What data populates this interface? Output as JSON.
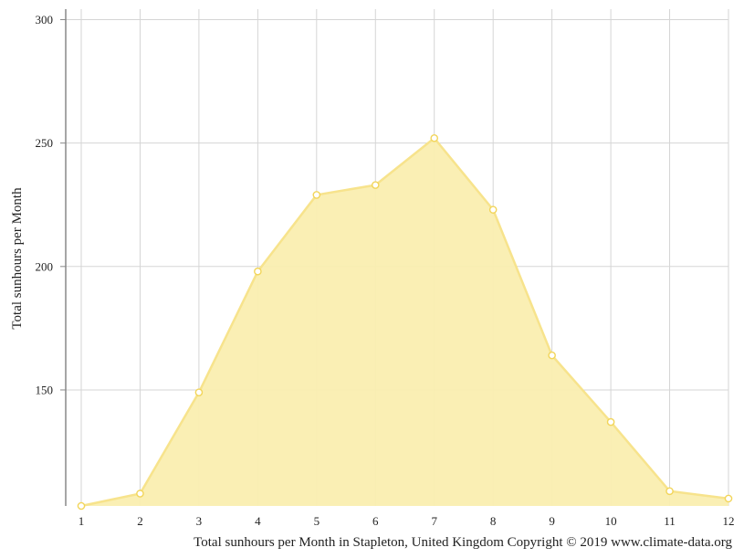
{
  "chart_data": {
    "type": "area",
    "title": "",
    "xlabel": "",
    "ylabel": "Total sunhours per Month",
    "caption": "Total sunhours per Month in Stapleton, United Kingdom Copyright © 2019 www.climate-data.org",
    "categories": [
      "1",
      "2",
      "3",
      "4",
      "5",
      "6",
      "7",
      "8",
      "9",
      "10",
      "11",
      "12"
    ],
    "series": [
      {
        "values": [
          103,
          108,
          149,
          198,
          229,
          233,
          252,
          223,
          164,
          137,
          109,
          106
        ]
      }
    ],
    "yticks": [
      150,
      200,
      250,
      300
    ],
    "ylim": [
      103,
      305
    ],
    "grid": true,
    "legend": "none",
    "colors": {
      "fill": "#faeeb0",
      "line": "#f7e38c",
      "marker_stroke": "#f2d55a",
      "marker_fill": "#ffffff",
      "grid": "#d5d5d5",
      "axis": "#888888"
    }
  }
}
